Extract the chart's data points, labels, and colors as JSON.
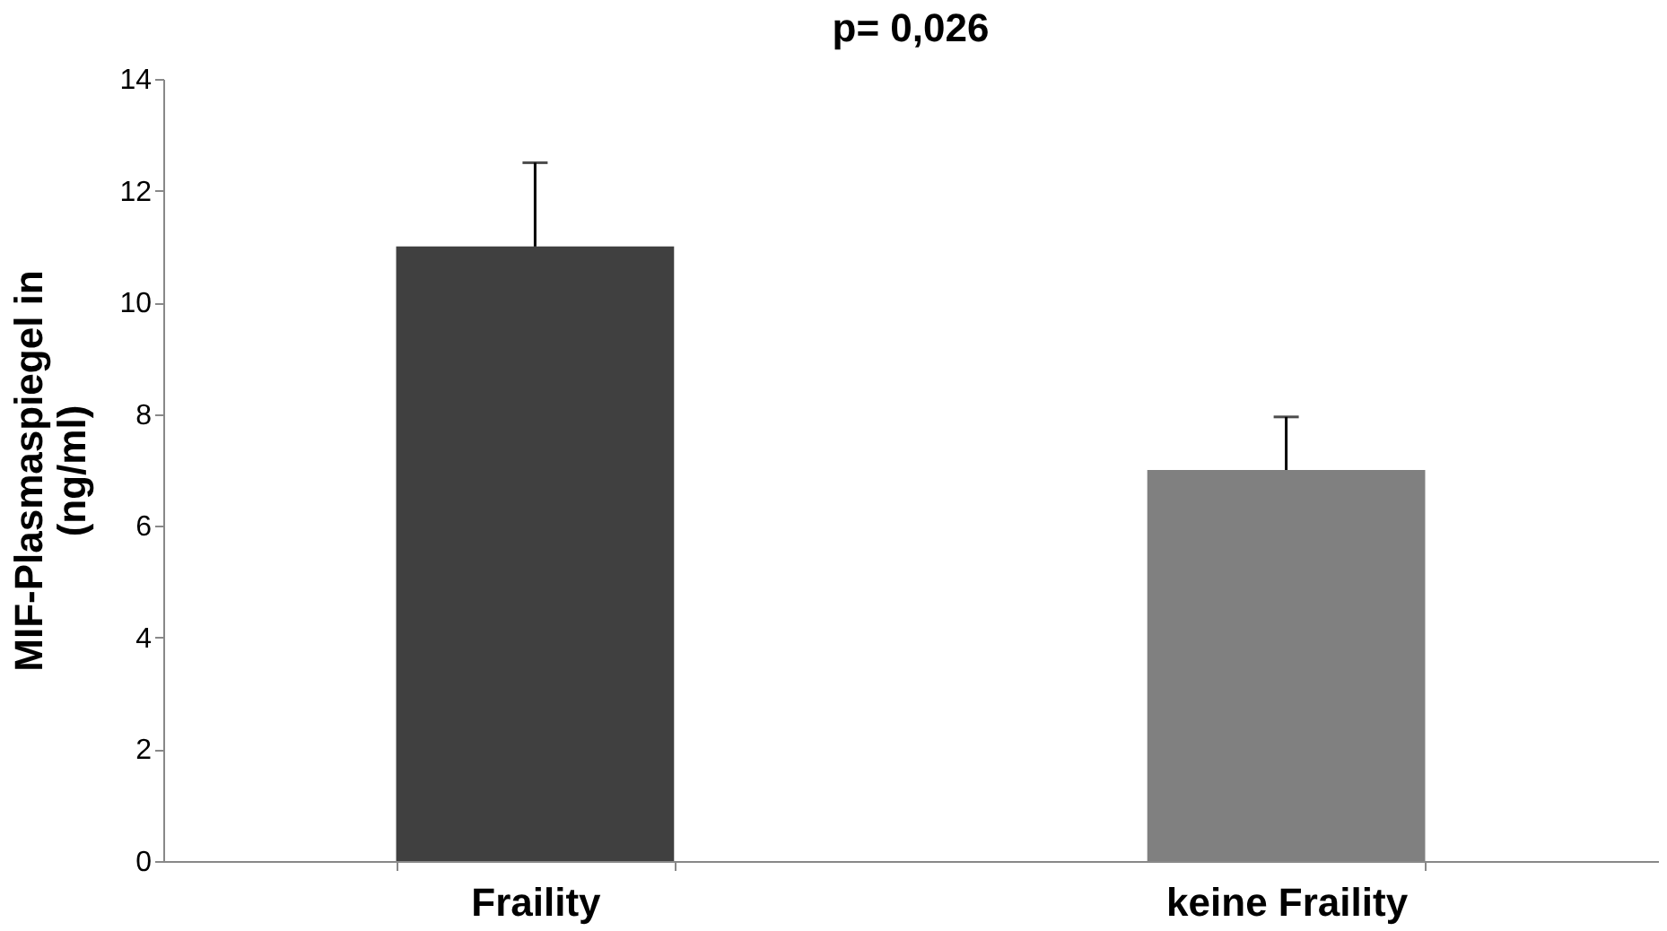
{
  "chart_data": {
    "type": "bar",
    "title": "p= 0,026",
    "ylabel": "MIF-Plasmaspiegel in (ng/ml)",
    "categories": [
      "Fraility",
      "keine Fraility"
    ],
    "values": [
      11,
      7
    ],
    "colors": [
      "#404040",
      "#808080"
    ],
    "errors": [
      [
        11,
        12.5
      ],
      [
        7,
        7.95
      ]
    ],
    "ylim": [
      0,
      14
    ],
    "yticks": [
      0,
      2,
      4,
      6,
      8,
      10,
      12,
      14
    ],
    "grid": false
  }
}
